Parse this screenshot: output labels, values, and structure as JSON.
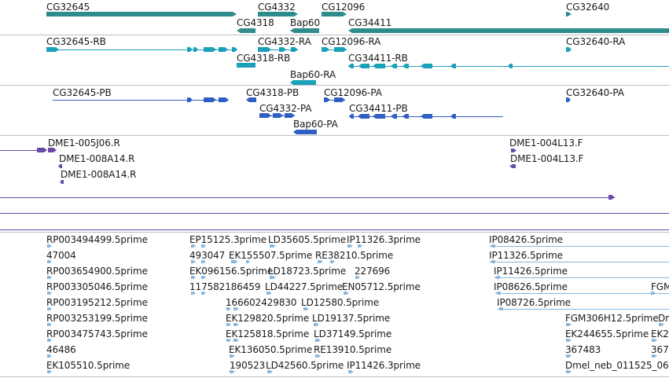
{
  "colors": {
    "gene": "#2e8c8c",
    "transcript": "#1aa0b8",
    "protein": "#2f5fc4",
    "clone": "#6a4aa8",
    "est": "#88b6dd",
    "separator": "#bfbfbf"
  },
  "tracks": [
    {
      "id": "gene",
      "features": [
        {
          "name": "gene-cg32645",
          "label": "CG32645"
        },
        {
          "name": "gene-cg4332",
          "label": "CG4332"
        },
        {
          "name": "gene-cg12096",
          "label": "CG12096"
        },
        {
          "name": "gene-cg32640",
          "label": "CG32640"
        },
        {
          "name": "gene-cg4318",
          "label": "CG4318"
        },
        {
          "name": "gene-bap60",
          "label": "Bap60"
        },
        {
          "name": "gene-cg34411",
          "label": "CG34411"
        }
      ]
    },
    {
      "id": "transcript",
      "features": [
        {
          "name": "transcript-cg32645-rb",
          "label": "CG32645-RB"
        },
        {
          "name": "transcript-cg4332-ra",
          "label": "CG4332-RA"
        },
        {
          "name": "transcript-cg12096-ra",
          "label": "CG12096-RA"
        },
        {
          "name": "transcript-cg32640-ra",
          "label": "CG32640-RA"
        },
        {
          "name": "transcript-cg4318-rb",
          "label": "CG4318-RB"
        },
        {
          "name": "transcript-cg34411-rb",
          "label": "CG34411-RB"
        },
        {
          "name": "transcript-bap60-ra",
          "label": "Bap60-RA"
        }
      ]
    },
    {
      "id": "protein",
      "features": [
        {
          "name": "protein-cg32645-pb",
          "label": "CG32645-PB"
        },
        {
          "name": "protein-cg4318-pb",
          "label": "CG4318-PB"
        },
        {
          "name": "protein-cg12096-pa",
          "label": "CG12096-PA"
        },
        {
          "name": "protein-cg32640-pa",
          "label": "CG32640-PA"
        },
        {
          "name": "protein-cg4332-pa",
          "label": "CG4332-PA"
        },
        {
          "name": "protein-cg34411-pb",
          "label": "CG34411-PB"
        },
        {
          "name": "protein-bap60-pa",
          "label": "Bap60-PA"
        }
      ]
    },
    {
      "id": "clone",
      "features": [
        {
          "name": "clone-dme1-005j06-r",
          "label": "DME1-005J06.R"
        },
        {
          "name": "clone-dme1-004l13-f-a",
          "label": "DME1-004L13.F"
        },
        {
          "name": "clone-dme1-008a14-r-a",
          "label": "DME1-008A14.R"
        },
        {
          "name": "clone-dme1-004l13-f-b",
          "label": "DME1-004L13.F"
        },
        {
          "name": "clone-dme1-008a14-r-b",
          "label": "DME1-008A14.R"
        }
      ]
    },
    {
      "id": "est",
      "features": [
        {
          "name": "est-rp003494499",
          "label": "RP003494499.5prime"
        },
        {
          "name": "est-ep15125",
          "label": "EP15125.3prime"
        },
        {
          "name": "est-ld35605",
          "label": "LD35605.5prime"
        },
        {
          "name": "est-ip11326-a",
          "label": "IP11326.3prime"
        },
        {
          "name": "est-ip08426",
          "label": "IP08426.5prime"
        },
        {
          "name": "est-47004",
          "label": "47004"
        },
        {
          "name": "est-493047",
          "label": "493047"
        },
        {
          "name": "est-ek155507",
          "label": "EK155507.5prime"
        },
        {
          "name": "est-re38210",
          "label": "RE38210.5prime"
        },
        {
          "name": "est-ip11326-b",
          "label": "IP11326.5prime"
        },
        {
          "name": "est-rp003654900",
          "label": "RP003654900.5prime"
        },
        {
          "name": "est-ek096156",
          "label": "EK096156.5prime"
        },
        {
          "name": "est-ld18723",
          "label": "LD18723.5prime"
        },
        {
          "name": "est-227696",
          "label": "227696"
        },
        {
          "name": "est-ip11426",
          "label": "IP11426.5prime"
        },
        {
          "name": "est-rp003305046",
          "label": "RP003305046.5prime"
        },
        {
          "name": "est-117582186459",
          "label": "117582186459"
        },
        {
          "name": "est-ld44227",
          "label": "LD44227.5prime"
        },
        {
          "name": "est-en05712",
          "label": "EN05712.5prime"
        },
        {
          "name": "est-ip08626",
          "label": "IP08626.5prime"
        },
        {
          "name": "est-fgm-partial",
          "label": "FGM"
        },
        {
          "name": "est-rp003195212",
          "label": "RP003195212.5prime"
        },
        {
          "name": "est-166602429830",
          "label": "166602429830"
        },
        {
          "name": "est-ld12580",
          "label": "LD12580.5prime"
        },
        {
          "name": "est-ip08726",
          "label": "IP08726.5prime"
        },
        {
          "name": "est-rp003253199",
          "label": "RP003253199.5prime"
        },
        {
          "name": "est-ek129820",
          "label": "EK129820.5prime"
        },
        {
          "name": "est-ld19137",
          "label": "LD19137.5prime"
        },
        {
          "name": "est-fgm306h12",
          "label": "FGM306H12.5prime"
        },
        {
          "name": "est-dr-partial",
          "label": "Dr"
        },
        {
          "name": "est-rp003475743",
          "label": "RP003475743.5prime"
        },
        {
          "name": "est-ek125818",
          "label": "EK125818.5prime"
        },
        {
          "name": "est-ld37149",
          "label": "LD37149.5prime"
        },
        {
          "name": "est-ek244655",
          "label": "EK244655.5prime"
        },
        {
          "name": "est-ek2-partial",
          "label": "EK2"
        },
        {
          "name": "est-46486",
          "label": "46486"
        },
        {
          "name": "est-ek136050",
          "label": "EK136050.5prime"
        },
        {
          "name": "est-re13910",
          "label": "RE13910.5prime"
        },
        {
          "name": "est-367483",
          "label": "367483"
        },
        {
          "name": "est-367-partial",
          "label": "367"
        },
        {
          "name": "est-ek105510",
          "label": "EK105510.5prime"
        },
        {
          "name": "est-190523",
          "label": "190523"
        },
        {
          "name": "est-ld42560",
          "label": "LD42560.5prime"
        },
        {
          "name": "est-ip11426-b",
          "label": "IP11426.3prime"
        },
        {
          "name": "est-dmel-neb-011525",
          "label": "Dmel_neb_011525_06"
        }
      ]
    }
  ]
}
